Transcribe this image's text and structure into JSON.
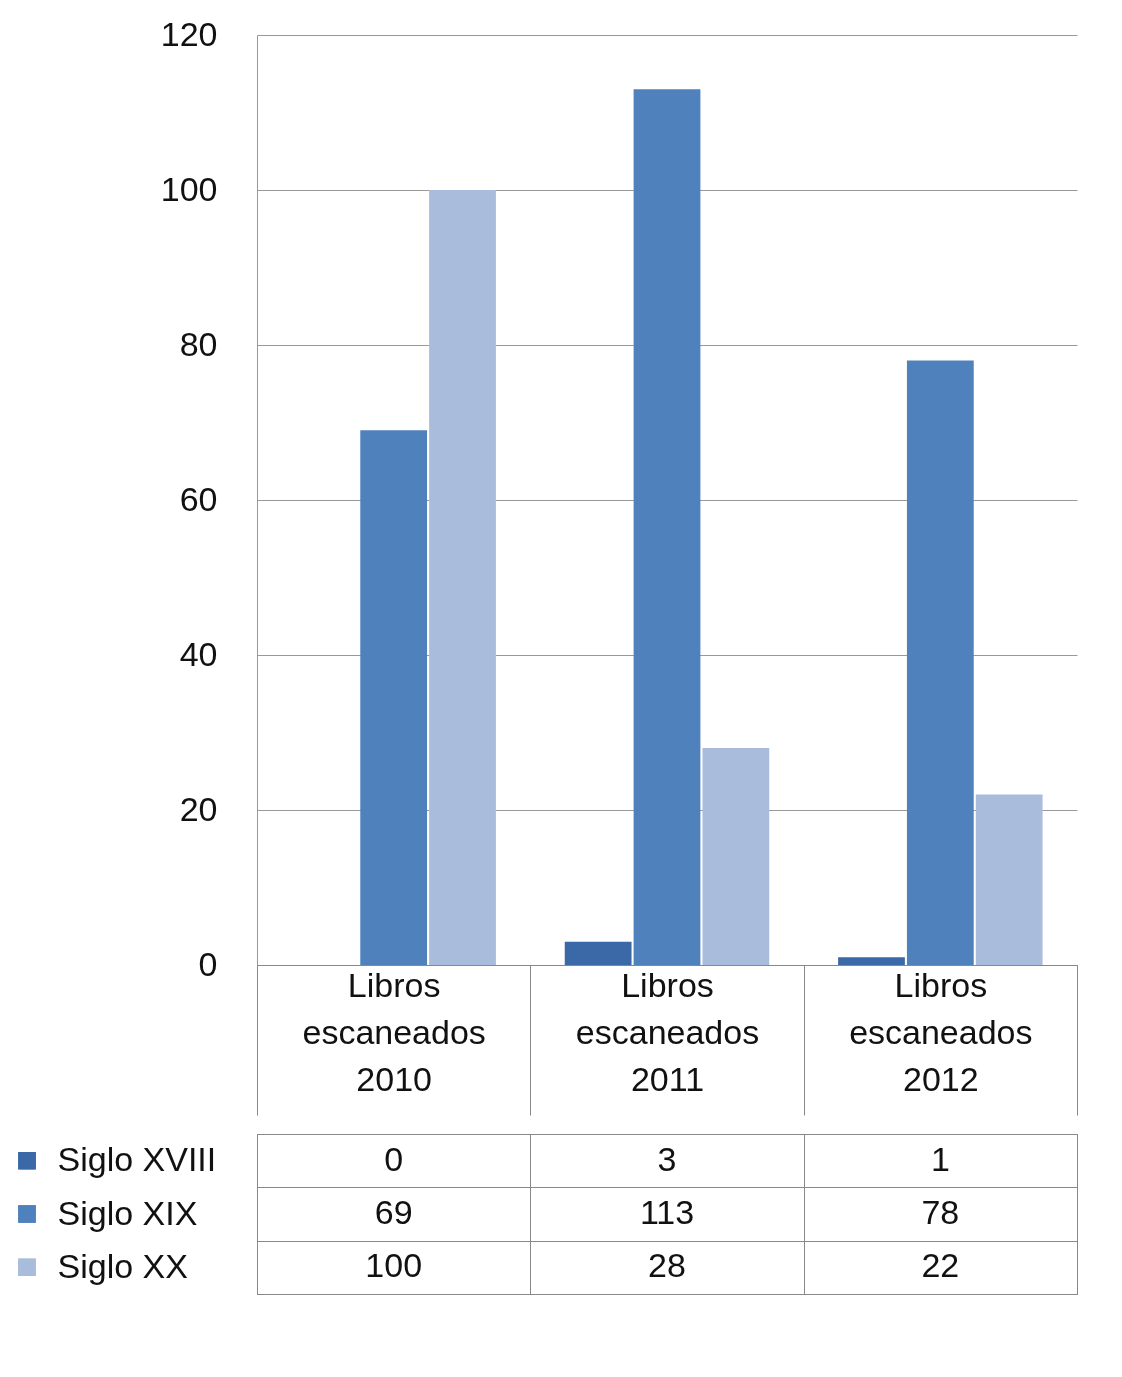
{
  "chart_data": {
    "type": "bar",
    "categories": [
      "Libros escaneados 2010",
      "Libros escaneados 2011",
      "Libros escaneados 2012"
    ],
    "series": [
      {
        "name": "Siglo XVIII",
        "color": "#3b68a6",
        "values": [
          0,
          3,
          1
        ]
      },
      {
        "name": "Siglo XIX",
        "color": "#4f81bd",
        "values": [
          69,
          113,
          78
        ]
      },
      {
        "name": "Siglo XX",
        "color": "#a9bcdb",
        "values": [
          100,
          28,
          22
        ]
      }
    ],
    "ylim": [
      0,
      120
    ],
    "yticks": [
      0,
      20,
      40,
      60,
      80,
      100,
      120
    ],
    "grid": "y",
    "data_labels": true,
    "legend": "bottom"
  }
}
